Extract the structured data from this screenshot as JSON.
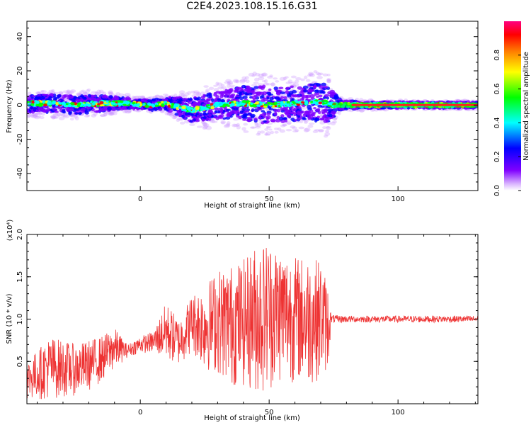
{
  "title": "C2E4.2023.108.15.16.G31",
  "colors": {
    "snr_line": "#ee3333",
    "axis": "#000000",
    "background": "#ffffff"
  },
  "chart_data": [
    {
      "type": "heatmap",
      "xlabel": "Height of straight line (km)",
      "ylabel": "Frequency (Hz)",
      "xlim": [
        -44,
        131
      ],
      "ylim": [
        -50,
        49
      ],
      "xticks": [
        0,
        50,
        100
      ],
      "yticks": [
        -40,
        -20,
        0,
        20,
        40
      ],
      "colorbar": {
        "label": "Normalized spectral amplitude",
        "range": [
          0,
          1
        ],
        "ticks": [
          "0.0",
          "0.2",
          "0.4",
          "0.6",
          "0.8"
        ],
        "colormap": [
          "#ffffff",
          "#8000ff",
          "#0000ff",
          "#00ffff",
          "#00ff00",
          "#ffff00",
          "#ff8000",
          "#ff0000",
          "#ff0080"
        ]
      },
      "ridge": {
        "x": [
          -44,
          -35,
          -25,
          -15,
          -5,
          5,
          10,
          15,
          20,
          30,
          40,
          50,
          60,
          70,
          75,
          85,
          100,
          115,
          131
        ],
        "y": [
          1,
          1,
          0,
          1,
          1,
          0,
          1,
          -1,
          -3,
          0,
          1,
          0,
          1,
          2,
          0,
          0,
          0,
          0,
          0
        ]
      },
      "spread_hz": {
        "x": [
          -44,
          -20,
          0,
          10,
          20,
          35,
          45,
          55,
          65,
          72,
          78,
          90,
          131
        ],
        "y": [
          6,
          6,
          3,
          4,
          8,
          10,
          13,
          12,
          12,
          14,
          3,
          2,
          2
        ]
      },
      "grid": false
    },
    {
      "type": "line",
      "xlabel": "Height of straight line (km)",
      "ylabel": "SNR (10 * v/v)",
      "y_multiplier": "(x10⁴)",
      "xlim": [
        -44,
        131
      ],
      "ylim": [
        0,
        2.0
      ],
      "xticks": [
        0,
        50,
        100
      ],
      "yticks": [
        "0.5",
        "1.0",
        "1.5",
        "2.0"
      ],
      "series": [
        {
          "envelope_x": [
            -44,
            -35,
            -25,
            -20,
            -15,
            -10,
            -5,
            0,
            5,
            10,
            15,
            20,
            25,
            30,
            35,
            40,
            45,
            50,
            55,
            60,
            65,
            70,
            73,
            74,
            80,
            90,
            100,
            110,
            120,
            131
          ],
          "envelope_low": [
            0.05,
            0.05,
            0.1,
            0.15,
            0.25,
            0.4,
            0.55,
            0.6,
            0.6,
            0.5,
            0.45,
            0.6,
            0.4,
            0.35,
            0.2,
            0.2,
            0.1,
            0.15,
            0.25,
            0.25,
            0.2,
            0.3,
            0.4,
            0.95,
            0.96,
            0.96,
            0.96,
            0.96,
            0.96,
            0.96
          ],
          "envelope_high": [
            0.5,
            0.8,
            0.7,
            0.75,
            0.8,
            0.9,
            0.7,
            0.8,
            0.85,
            1.2,
            1.0,
            1.3,
            1.4,
            1.6,
            1.65,
            1.7,
            1.9,
            1.95,
            1.85,
            1.75,
            1.75,
            1.7,
            1.4,
            1.05,
            1.04,
            1.04,
            1.04,
            1.04,
            1.04,
            1.04
          ]
        }
      ],
      "grid": false
    }
  ]
}
